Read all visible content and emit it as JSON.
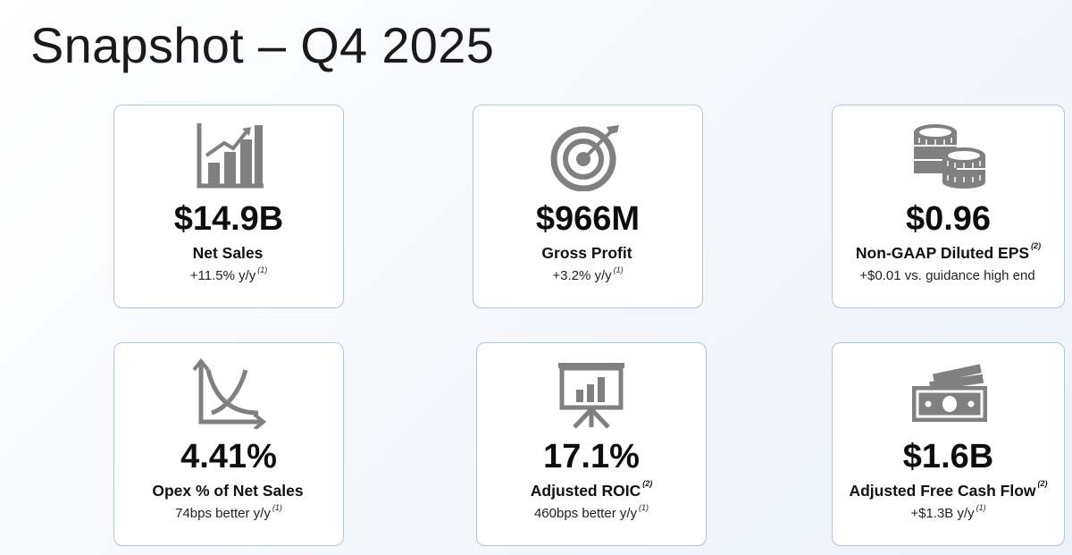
{
  "title": "Snapshot – Q4 2025",
  "cards": [
    {
      "icon": "bar-chart-growth-icon",
      "value": "$14.9B",
      "label": "Net Sales",
      "label_note": "",
      "sub": "+11.5% y/y",
      "sub_note": "(1)"
    },
    {
      "icon": "target-arrow-icon",
      "value": "$966M",
      "label": "Gross Profit",
      "label_note": "",
      "sub": "+3.2% y/y",
      "sub_note": "(1)"
    },
    {
      "icon": "coins-stack-icon",
      "value": "$0.96",
      "label": "Non-GAAP Diluted EPS",
      "label_note": "(2)",
      "sub": "+$0.01 vs. guidance high end",
      "sub_note": ""
    },
    {
      "icon": "declining-curve-chart-icon",
      "value": "4.41%",
      "label": "Opex % of Net Sales",
      "label_note": "",
      "sub": "74bps better y/y",
      "sub_note": "(1)"
    },
    {
      "icon": "presentation-board-icon",
      "value": "17.1%",
      "label": "Adjusted ROIC",
      "label_note": "(2)",
      "sub": "460bps better y/y",
      "sub_note": "(1)"
    },
    {
      "icon": "cash-bills-icon",
      "value": "$1.6B",
      "label": "Adjusted Free Cash Flow",
      "label_note": "(2)",
      "sub": "+$1.3B y/y",
      "sub_note": "(1)"
    }
  ]
}
